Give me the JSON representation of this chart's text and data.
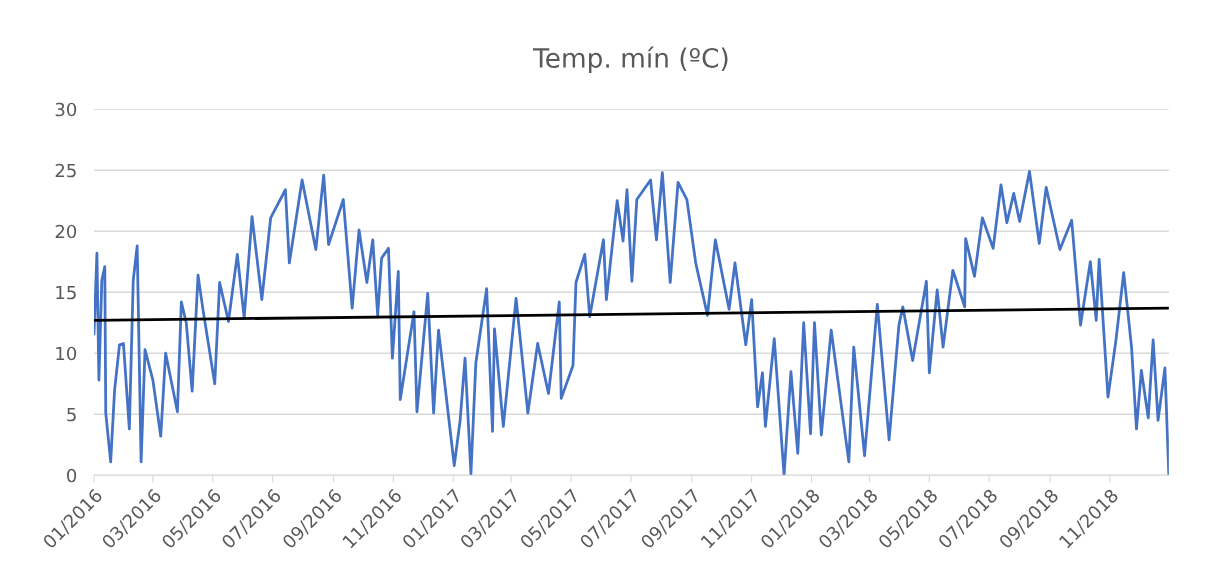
{
  "chart_data": {
    "type": "line",
    "title": "Temp. mín (ºC)",
    "xlim": [
      "2016-01-01",
      "2018-12-31"
    ],
    "xticks": [
      {
        "value": "2016-01-01",
        "label": "01/2016"
      },
      {
        "value": "2016-03-01",
        "label": "03/2016"
      },
      {
        "value": "2016-05-01",
        "label": "05/2016"
      },
      {
        "value": "2016-07-01",
        "label": "07/2016"
      },
      {
        "value": "2016-09-01",
        "label": "09/2016"
      },
      {
        "value": "2016-11-01",
        "label": "11/2016"
      },
      {
        "value": "2017-01-01",
        "label": "01/2017"
      },
      {
        "value": "2017-03-01",
        "label": "03/2017"
      },
      {
        "value": "2017-05-01",
        "label": "05/2017"
      },
      {
        "value": "2017-07-01",
        "label": "07/2017"
      },
      {
        "value": "2017-09-01",
        "label": "09/2017"
      },
      {
        "value": "2017-11-01",
        "label": "11/2017"
      },
      {
        "value": "2018-01-01",
        "label": "01/2018"
      },
      {
        "value": "2018-03-01",
        "label": "03/2018"
      },
      {
        "value": "2018-05-01",
        "label": "05/2018"
      },
      {
        "value": "2018-07-01",
        "label": "07/2018"
      },
      {
        "value": "2018-09-01",
        "label": "09/2018"
      },
      {
        "value": "2018-11-01",
        "label": "11/2018"
      }
    ],
    "ylim": [
      0,
      30
    ],
    "yticks": [
      0,
      5,
      10,
      15,
      20,
      25,
      30
    ],
    "grid": "y",
    "marker": "none",
    "line_style": "solid",
    "series": [
      {
        "color": "#4472c4",
        "x": [
          "2016-01-01",
          "2016-01-04",
          "2016-01-06",
          "2016-01-09",
          "2016-01-12",
          "2016-01-13",
          "2016-01-18",
          "2016-01-22",
          "2016-01-27",
          "2016-01-31",
          "2016-02-06",
          "2016-02-10",
          "2016-02-14",
          "2016-02-18",
          "2016-02-22",
          "2016-03-01",
          "2016-03-09",
          "2016-03-14",
          "2016-03-26",
          "2016-03-30",
          "2016-04-04",
          "2016-04-10",
          "2016-04-16",
          "2016-04-21",
          "2016-05-03",
          "2016-05-08",
          "2016-05-17",
          "2016-05-26",
          "2016-06-02",
          "2016-06-10",
          "2016-06-20",
          "2016-06-29",
          "2016-07-14",
          "2016-07-18",
          "2016-07-31",
          "2016-08-14",
          "2016-08-22",
          "2016-08-27",
          "2016-09-11",
          "2016-09-20",
          "2016-09-27",
          "2016-10-05",
          "2016-10-11",
          "2016-10-16",
          "2016-10-20",
          "2016-10-27",
          "2016-10-31",
          "2016-11-06",
          "2016-11-08",
          "2016-11-22",
          "2016-11-25",
          "2016-12-06",
          "2016-12-12",
          "2016-12-17",
          "2017-01-02",
          "2017-01-08",
          "2017-01-13",
          "2017-01-19",
          "2017-01-24",
          "2017-02-04",
          "2017-02-10",
          "2017-02-12",
          "2017-02-21",
          "2017-03-06",
          "2017-03-18",
          "2017-03-28",
          "2017-04-08",
          "2017-04-19",
          "2017-04-21",
          "2017-05-03",
          "2017-05-06",
          "2017-05-15",
          "2017-05-20",
          "2017-06-03",
          "2017-06-06",
          "2017-06-17",
          "2017-06-23",
          "2017-06-27",
          "2017-07-02",
          "2017-07-07",
          "2017-07-21",
          "2017-07-27",
          "2017-08-02",
          "2017-08-10",
          "2017-08-18",
          "2017-08-27",
          "2017-09-05",
          "2017-09-17",
          "2017-09-25",
          "2017-10-09",
          "2017-10-15",
          "2017-10-26",
          "2017-11-01",
          "2017-11-07",
          "2017-11-12",
          "2017-11-15",
          "2017-11-24",
          "2017-12-04",
          "2017-12-11",
          "2017-12-18",
          "2017-12-24",
          "2017-12-31",
          "2018-01-04",
          "2018-01-11",
          "2018-01-21",
          "2018-02-08",
          "2018-02-13",
          "2018-02-24",
          "2018-03-09",
          "2018-03-21",
          "2018-03-31",
          "2018-04-04",
          "2018-04-14",
          "2018-04-28",
          "2018-05-01",
          "2018-05-09",
          "2018-05-15",
          "2018-05-25",
          "2018-06-06",
          "2018-06-07",
          "2018-06-16",
          "2018-06-24",
          "2018-07-05",
          "2018-07-13",
          "2018-07-19",
          "2018-07-26",
          "2018-08-01",
          "2018-08-11",
          "2018-08-21",
          "2018-08-28",
          "2018-09-11",
          "2018-09-23",
          "2018-10-02",
          "2018-10-12",
          "2018-10-18",
          "2018-10-21",
          "2018-10-30",
          "2018-11-07",
          "2018-11-15",
          "2018-11-23",
          "2018-11-28",
          "2018-12-03",
          "2018-12-10",
          "2018-12-15",
          "2018-12-20",
          "2018-12-27",
          "2018-12-31"
        ],
        "values": [
          11.6,
          18.2,
          7.8,
          16.0,
          17.1,
          5.1,
          1.1,
          7.0,
          10.7,
          10.8,
          3.8,
          16.0,
          18.8,
          1.1,
          10.3,
          7.8,
          3.2,
          10.0,
          5.2,
          14.2,
          12.5,
          6.9,
          16.4,
          13.6,
          7.5,
          15.8,
          12.6,
          18.1,
          12.9,
          21.2,
          14.4,
          21.1,
          23.4,
          17.4,
          24.2,
          18.5,
          24.6,
          18.9,
          22.6,
          13.7,
          20.1,
          15.8,
          19.3,
          13.1,
          17.8,
          18.6,
          9.6,
          16.7,
          6.2,
          13.4,
          5.2,
          14.9,
          5.1,
          11.9,
          0.8,
          4.5,
          9.6,
          0.1,
          9.2,
          15.3,
          3.6,
          12.0,
          4.0,
          14.5,
          5.1,
          10.8,
          6.7,
          14.2,
          6.3,
          9.0,
          15.8,
          18.1,
          13.0,
          19.3,
          14.4,
          22.5,
          19.2,
          23.4,
          15.9,
          22.6,
          24.2,
          19.3,
          24.8,
          15.8,
          24.0,
          22.6,
          17.4,
          13.1,
          19.3,
          13.6,
          17.4,
          10.7,
          14.4,
          5.6,
          8.4,
          4.0,
          11.2,
          0.0,
          8.5,
          1.8,
          12.5,
          3.4,
          12.5,
          3.3,
          11.9,
          1.1,
          10.5,
          1.6,
          14.0,
          2.9,
          12.3,
          13.8,
          9.4,
          15.9,
          8.4,
          15.2,
          10.5,
          16.8,
          13.8,
          19.4,
          16.3,
          21.1,
          18.6,
          23.8,
          20.7,
          23.1,
          20.8,
          24.9,
          19.0,
          23.6,
          18.5,
          20.9,
          12.3,
          17.5,
          12.7,
          17.7,
          6.4,
          11.0,
          16.6,
          10.5,
          3.8,
          8.6,
          4.7,
          11.1,
          4.5,
          8.8,
          0.0
        ]
      },
      {
        "color": "#000000",
        "x": [
          "2016-01-01",
          "2018-12-31"
        ],
        "values": [
          12.7,
          13.7
        ]
      }
    ]
  }
}
